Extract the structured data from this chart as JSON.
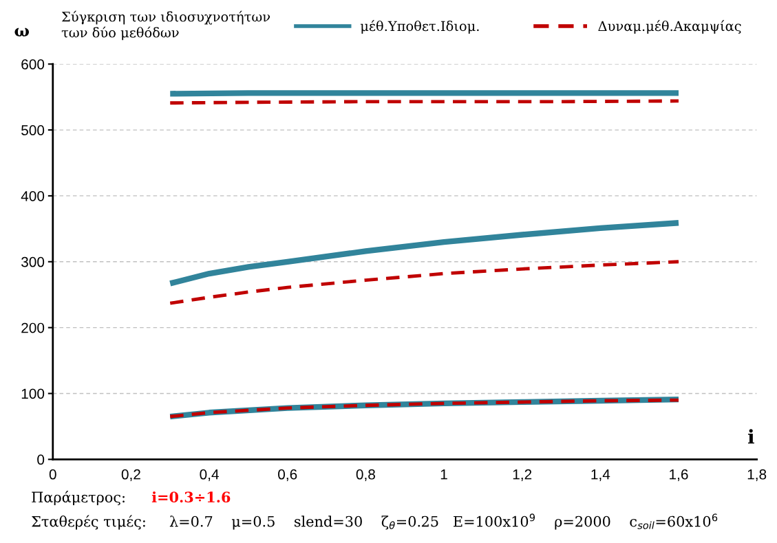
{
  "chart_data": {
    "type": "line",
    "title": "Σύγκριση των ιδιοσυχνοτήτων\nτων δύο μεθόδων",
    "xlabel": "i",
    "ylabel": "ω",
    "series": [
      {
        "name": "μέθ.Υποθετ.Ιδιομ.",
        "color": "#31849b",
        "line_style": "solid",
        "x": [
          0.3,
          0.5,
          0.8,
          1.0,
          1.3,
          1.6
        ],
        "values": [
          555,
          556,
          556,
          556,
          556,
          556
        ]
      },
      {
        "name": "Δυναμ.μέθ.Ακαμψίας",
        "color": "#c00000",
        "line_style": "dashed",
        "x": [
          0.3,
          0.5,
          0.8,
          1.0,
          1.3,
          1.6
        ],
        "values": [
          541,
          542,
          543,
          543,
          543,
          544
        ]
      },
      {
        "color": "#31849b",
        "line_style": "solid",
        "x": [
          0.3,
          0.4,
          0.5,
          0.6,
          0.8,
          1.0,
          1.2,
          1.4,
          1.6
        ],
        "values": [
          267,
          282,
          292,
          300,
          316,
          330,
          341,
          351,
          359
        ]
      },
      {
        "color": "#c00000",
        "line_style": "dashed",
        "x": [
          0.3,
          0.4,
          0.5,
          0.6,
          0.8,
          1.0,
          1.2,
          1.4,
          1.6
        ],
        "values": [
          237,
          246,
          254,
          261,
          272,
          282,
          289,
          295,
          300
        ]
      },
      {
        "color": "#31849b",
        "line_style": "solid",
        "x": [
          0.3,
          0.4,
          0.6,
          0.8,
          1.0,
          1.2,
          1.4,
          1.6
        ],
        "values": [
          65,
          71,
          78,
          82,
          85,
          87,
          89,
          91
        ]
      },
      {
        "color": "#c00000",
        "line_style": "dashed",
        "x": [
          0.3,
          0.4,
          0.6,
          0.8,
          1.0,
          1.2,
          1.4,
          1.6
        ],
        "values": [
          65,
          71,
          78,
          82,
          85,
          87,
          89,
          90
        ]
      }
    ],
    "xlim": [
      0,
      1.8
    ],
    "xticks": [
      0,
      {
        "value": 0.2,
        "label": "0,2"
      },
      {
        "value": 0.4,
        "label": "0,4"
      },
      {
        "value": 0.6,
        "label": "0,6"
      },
      {
        "value": 0.8,
        "label": "0,8"
      },
      1,
      {
        "value": 1.2,
        "label": "1,2"
      },
      {
        "value": 1.4,
        "label": "1,4"
      },
      {
        "value": 1.6,
        "label": "1,6"
      },
      {
        "value": 1.8,
        "label": "1,8"
      }
    ],
    "ylim": [
      0,
      600
    ],
    "yticks": [
      0,
      100,
      200,
      300,
      400,
      500,
      600
    ],
    "grid": "y",
    "legend": "top",
    "marker": "none",
    "annotations": [
      "Παράμετρος:",
      "i=0.3÷1.6",
      "Σταθερές τιμές:     λ=0.7    μ=0.5    slend=30    ζ$_{θ}$=0.25   E=100x10$^{9}$    ρ=2000    c$_{soil}$=60x10$^{6}$"
    ]
  }
}
